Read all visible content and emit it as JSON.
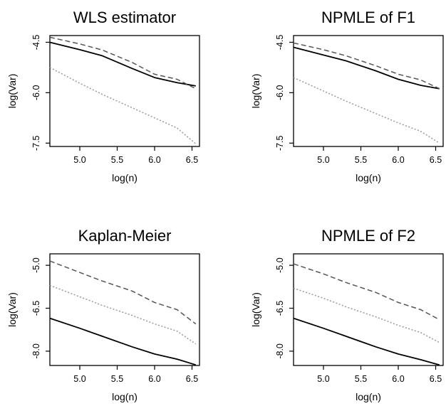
{
  "chart_data": [
    {
      "type": "line",
      "title": "WLS estimator",
      "xlabel": "log(n)",
      "ylabel": "log(Var)",
      "xlim": [
        4.6,
        6.6
      ],
      "ylim": [
        -7.6,
        -4.3
      ],
      "x_ticks": [
        5.0,
        5.5,
        6.0,
        6.5
      ],
      "x_tick_labels": [
        "5.0",
        "5.5",
        "6.0",
        "6.5"
      ],
      "y_ticks": [
        -4.5,
        -6.0,
        -7.5
      ],
      "y_tick_labels": [
        "-4.5",
        "-6.0",
        "-7.5"
      ],
      "grid": false,
      "series": [
        {
          "style": "solid",
          "color": "#000000",
          "x": [
            4.6,
            5.0,
            5.3,
            5.7,
            6.0,
            6.3,
            6.55
          ],
          "y": [
            -4.5,
            -4.72,
            -4.9,
            -5.28,
            -5.55,
            -5.7,
            -5.8
          ]
        },
        {
          "style": "dashed",
          "color": "#555555",
          "x": [
            4.6,
            5.0,
            5.3,
            5.7,
            6.0,
            6.3,
            6.55
          ],
          "y": [
            -4.35,
            -4.55,
            -4.73,
            -5.1,
            -5.45,
            -5.6,
            -5.88
          ]
        },
        {
          "style": "dotted",
          "color": "#999999",
          "x": [
            4.6,
            5.0,
            5.3,
            5.7,
            6.0,
            6.3,
            6.55
          ],
          "y": [
            -5.25,
            -5.72,
            -6.05,
            -6.45,
            -6.75,
            -7.05,
            -7.52
          ]
        }
      ]
    },
    {
      "type": "line",
      "title": "NPMLE of F1",
      "xlabel": "log(n)",
      "ylabel": "log(Var)",
      "xlim": [
        4.6,
        6.6
      ],
      "ylim": [
        -7.6,
        -4.3
      ],
      "x_ticks": [
        5.0,
        5.5,
        6.0,
        6.5
      ],
      "x_tick_labels": [
        "5.0",
        "5.5",
        "6.0",
        "6.5"
      ],
      "y_ticks": [
        -4.5,
        -6.0,
        -7.5
      ],
      "y_tick_labels": [
        "-4.5",
        "-6.0",
        "-7.5"
      ],
      "grid": false,
      "series": [
        {
          "style": "solid",
          "color": "#000000",
          "x": [
            4.6,
            5.0,
            5.3,
            5.7,
            6.0,
            6.3,
            6.55
          ],
          "y": [
            -4.65,
            -4.88,
            -5.05,
            -5.35,
            -5.6,
            -5.78,
            -5.88
          ]
        },
        {
          "style": "dashed",
          "color": "#555555",
          "x": [
            4.6,
            5.0,
            5.3,
            5.7,
            6.0,
            6.3,
            6.55
          ],
          "y": [
            -4.52,
            -4.72,
            -4.9,
            -5.2,
            -5.45,
            -5.62,
            -5.88
          ]
        },
        {
          "style": "dotted",
          "color": "#999999",
          "x": [
            4.6,
            5.0,
            5.3,
            5.7,
            6.0,
            6.3,
            6.55
          ],
          "y": [
            -5.55,
            -5.95,
            -6.25,
            -6.62,
            -6.9,
            -7.15,
            -7.5
          ]
        }
      ]
    },
    {
      "type": "line",
      "title": "Kaplan-Meier",
      "xlabel": "log(n)",
      "ylabel": "log(Var)",
      "xlim": [
        4.6,
        6.6
      ],
      "ylim": [
        -8.5,
        -4.6
      ],
      "x_ticks": [
        5.0,
        5.5,
        6.0,
        6.5
      ],
      "x_tick_labels": [
        "5.0",
        "5.5",
        "6.0",
        "6.5"
      ],
      "y_ticks": [
        -5.0,
        -6.5,
        -8.0
      ],
      "y_tick_labels": [
        "-5.0",
        "-6.5",
        "-8.0"
      ],
      "grid": false,
      "series": [
        {
          "style": "solid",
          "color": "#000000",
          "x": [
            4.6,
            5.0,
            5.3,
            5.7,
            6.0,
            6.3,
            6.55
          ],
          "y": [
            -6.85,
            -7.2,
            -7.48,
            -7.85,
            -8.1,
            -8.28,
            -8.48
          ]
        },
        {
          "style": "dashed",
          "color": "#555555",
          "x": [
            4.6,
            5.0,
            5.3,
            5.7,
            6.0,
            6.3,
            6.55
          ],
          "y": [
            -4.85,
            -5.25,
            -5.55,
            -5.9,
            -6.3,
            -6.55,
            -7.05
          ]
        },
        {
          "style": "dotted",
          "color": "#999999",
          "x": [
            4.6,
            5.0,
            5.3,
            5.7,
            6.0,
            6.3,
            6.55
          ],
          "y": [
            -5.7,
            -6.1,
            -6.4,
            -6.75,
            -7.05,
            -7.3,
            -7.75
          ]
        }
      ]
    },
    {
      "type": "line",
      "title": "NPMLE of F2",
      "xlabel": "log(n)",
      "ylabel": "log(Var)",
      "xlim": [
        4.6,
        6.6
      ],
      "ylim": [
        -8.5,
        -4.6
      ],
      "x_ticks": [
        5.0,
        5.5,
        6.0,
        6.5
      ],
      "x_tick_labels": [
        "5.0",
        "5.5",
        "6.0",
        "6.5"
      ],
      "y_ticks": [
        -5.0,
        -6.5,
        -8.0
      ],
      "y_tick_labels": [
        "-5.0",
        "-6.5",
        "-8.0"
      ],
      "grid": false,
      "series": [
        {
          "style": "solid",
          "color": "#000000",
          "x": [
            4.6,
            5.0,
            5.3,
            5.7,
            6.0,
            6.3,
            6.55
          ],
          "y": [
            -6.85,
            -7.2,
            -7.48,
            -7.85,
            -8.1,
            -8.3,
            -8.48
          ]
        },
        {
          "style": "dashed",
          "color": "#555555",
          "x": [
            4.6,
            5.0,
            5.3,
            5.7,
            6.0,
            6.3,
            6.55
          ],
          "y": [
            -4.95,
            -5.3,
            -5.6,
            -5.95,
            -6.3,
            -6.55,
            -6.9
          ]
        },
        {
          "style": "dotted",
          "color": "#999999",
          "x": [
            4.6,
            5.0,
            5.3,
            5.7,
            6.0,
            6.3,
            6.55
          ],
          "y": [
            -5.8,
            -6.15,
            -6.45,
            -6.8,
            -7.1,
            -7.35,
            -7.7
          ]
        }
      ]
    }
  ]
}
